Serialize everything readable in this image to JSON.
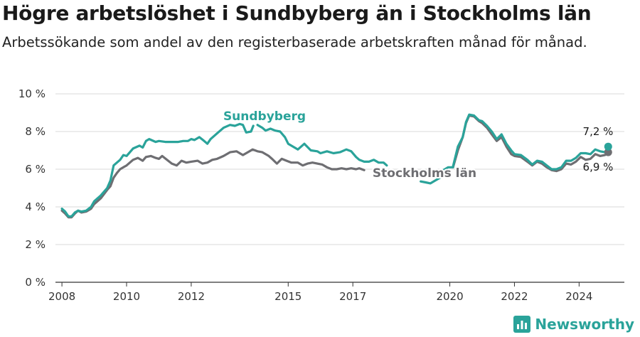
{
  "header": {
    "title": "Högre arbetslöshet i Sundbyberg än i Stockholms län",
    "subtitle": "Arbetssökande som andel av den registerbaserade arbetskraften månad för månad."
  },
  "brand": {
    "name": "Newsworthy"
  },
  "colors": {
    "sundbyberg": "#2aa39a",
    "stockholm": "#6e6e72",
    "grid": "#d9d9d9",
    "axis": "#333333"
  },
  "chart_data": {
    "type": "line",
    "title": "Högre arbetslöshet i Sundbyberg än i Stockholms län",
    "subtitle": "Arbetssökande som andel av den registerbaserade arbetskraften månad för månad.",
    "xlabel": "",
    "ylabel": "",
    "xlim": [
      2007.8,
      2025.4
    ],
    "ylim": [
      0,
      10
    ],
    "grid": true,
    "x_ticks": [
      2008,
      2010,
      2012,
      2015,
      2017,
      2020,
      2022,
      2024
    ],
    "x_tick_labels": [
      "2008",
      "2010",
      "2012",
      "2015",
      "2017",
      "2020",
      "2022",
      "2024"
    ],
    "y_ticks": [
      0,
      2,
      4,
      6,
      8,
      10
    ],
    "y_tick_labels": [
      "0 %",
      "2 %",
      "4 %",
      "6 %",
      "8 %",
      "10 %"
    ],
    "series": [
      {
        "name": "Sundbyberg",
        "label": "Sundbyberg",
        "end_label": "7,2 %",
        "end_value": 7.2,
        "segments": [
          [
            [
              2008.0,
              3.9
            ],
            [
              2008.1,
              3.75
            ],
            [
              2008.2,
              3.5
            ],
            [
              2008.3,
              3.5
            ],
            [
              2008.4,
              3.7
            ],
            [
              2008.5,
              3.8
            ],
            [
              2008.6,
              3.75
            ],
            [
              2008.75,
              3.8
            ],
            [
              2008.9,
              4.0
            ],
            [
              2009.0,
              4.3
            ],
            [
              2009.2,
              4.6
            ],
            [
              2009.4,
              5.0
            ],
            [
              2009.5,
              5.4
            ],
            [
              2009.6,
              6.2
            ],
            [
              2009.7,
              6.35
            ],
            [
              2009.8,
              6.5
            ],
            [
              2009.9,
              6.75
            ],
            [
              2010.0,
              6.7
            ],
            [
              2010.2,
              7.1
            ],
            [
              2010.4,
              7.25
            ],
            [
              2010.5,
              7.15
            ],
            [
              2010.6,
              7.5
            ],
            [
              2010.7,
              7.6
            ],
            [
              2010.9,
              7.45
            ],
            [
              2011.0,
              7.5
            ],
            [
              2011.2,
              7.45
            ],
            [
              2011.4,
              7.45
            ],
            [
              2011.6,
              7.45
            ],
            [
              2011.75,
              7.5
            ],
            [
              2011.9,
              7.5
            ],
            [
              2012.0,
              7.6
            ],
            [
              2012.1,
              7.55
            ],
            [
              2012.25,
              7.7
            ],
            [
              2012.4,
              7.5
            ],
            [
              2012.5,
              7.35
            ],
            [
              2012.6,
              7.6
            ],
            [
              2012.8,
              7.9
            ],
            [
              2013.0,
              8.2
            ],
            [
              2013.2,
              8.35
            ],
            [
              2013.35,
              8.3
            ],
            [
              2013.5,
              8.4
            ],
            [
              2013.6,
              8.35
            ],
            [
              2013.7,
              7.95
            ],
            [
              2013.85,
              8.0
            ],
            [
              2013.92,
              8.3
            ]
          ],
          [
            [
              2014.05,
              8.35
            ],
            [
              2014.2,
              8.2
            ],
            [
              2014.3,
              8.05
            ],
            [
              2014.45,
              8.15
            ],
            [
              2014.6,
              8.05
            ],
            [
              2014.75,
              8.0
            ],
            [
              2014.9,
              7.7
            ],
            [
              2015.0,
              7.35
            ],
            [
              2015.15,
              7.2
            ],
            [
              2015.3,
              7.05
            ],
            [
              2015.5,
              7.35
            ],
            [
              2015.7,
              7.0
            ],
            [
              2015.9,
              6.95
            ],
            [
              2016.0,
              6.85
            ],
            [
              2016.2,
              6.95
            ],
            [
              2016.4,
              6.85
            ],
            [
              2016.6,
              6.9
            ],
            [
              2016.8,
              7.05
            ],
            [
              2016.95,
              6.95
            ],
            [
              2017.1,
              6.65
            ],
            [
              2017.2,
              6.5
            ],
            [
              2017.35,
              6.4
            ],
            [
              2017.5,
              6.4
            ],
            [
              2017.65,
              6.5
            ],
            [
              2017.8,
              6.35
            ],
            [
              2017.95,
              6.35
            ],
            [
              2018.05,
              6.2
            ]
          ],
          [
            [
              2019.1,
              5.35
            ],
            [
              2019.25,
              5.3
            ],
            [
              2019.4,
              5.25
            ],
            [
              2019.55,
              5.4
            ],
            [
              2019.7,
              5.55
            ],
            [
              2019.8,
              5.95
            ],
            [
              2019.95,
              6.1
            ],
            [
              2020.1,
              6.1
            ]
          ],
          [
            [
              2020.1,
              6.15
            ],
            [
              2020.25,
              7.2
            ],
            [
              2020.4,
              7.7
            ],
            [
              2020.5,
              8.5
            ],
            [
              2020.6,
              8.9
            ],
            [
              2020.75,
              8.85
            ],
            [
              2020.9,
              8.6
            ],
            [
              2021.0,
              8.55
            ],
            [
              2021.15,
              8.3
            ],
            [
              2021.3,
              8.0
            ],
            [
              2021.45,
              7.6
            ],
            [
              2021.6,
              7.85
            ],
            [
              2021.75,
              7.35
            ],
            [
              2021.9,
              7.0
            ],
            [
              2022.0,
              6.8
            ],
            [
              2022.2,
              6.75
            ],
            [
              2022.4,
              6.5
            ],
            [
              2022.55,
              6.25
            ],
            [
              2022.7,
              6.45
            ],
            [
              2022.85,
              6.4
            ],
            [
              2023.0,
              6.2
            ],
            [
              2023.15,
              6.0
            ],
            [
              2023.3,
              6.0
            ],
            [
              2023.45,
              6.1
            ],
            [
              2023.6,
              6.45
            ],
            [
              2023.75,
              6.45
            ],
            [
              2023.9,
              6.6
            ],
            [
              2024.05,
              6.85
            ],
            [
              2024.2,
              6.85
            ],
            [
              2024.35,
              6.8
            ],
            [
              2024.5,
              7.05
            ],
            [
              2024.65,
              6.95
            ],
            [
              2024.8,
              6.9
            ],
            [
              2024.9,
              7.2
            ]
          ]
        ]
      },
      {
        "name": "Stockholms län",
        "label": "Stockholms län",
        "end_label": "6,9 %",
        "end_value": 6.9,
        "segments": [
          [
            [
              2008.0,
              3.8
            ],
            [
              2008.1,
              3.65
            ],
            [
              2008.2,
              3.45
            ],
            [
              2008.3,
              3.45
            ],
            [
              2008.4,
              3.65
            ],
            [
              2008.5,
              3.8
            ],
            [
              2008.6,
              3.7
            ],
            [
              2008.75,
              3.75
            ],
            [
              2008.9,
              3.9
            ],
            [
              2009.0,
              4.15
            ],
            [
              2009.2,
              4.45
            ],
            [
              2009.4,
              4.9
            ],
            [
              2009.5,
              5.1
            ],
            [
              2009.6,
              5.55
            ],
            [
              2009.7,
              5.8
            ],
            [
              2009.8,
              6.0
            ],
            [
              2009.9,
              6.1
            ],
            [
              2010.0,
              6.2
            ],
            [
              2010.2,
              6.5
            ],
            [
              2010.35,
              6.6
            ],
            [
              2010.5,
              6.45
            ],
            [
              2010.6,
              6.65
            ],
            [
              2010.75,
              6.7
            ],
            [
              2010.9,
              6.6
            ],
            [
              2011.0,
              6.55
            ],
            [
              2011.1,
              6.7
            ],
            [
              2011.25,
              6.5
            ],
            [
              2011.4,
              6.3
            ],
            [
              2011.55,
              6.2
            ],
            [
              2011.7,
              6.45
            ],
            [
              2011.85,
              6.35
            ],
            [
              2012.0,
              6.4
            ],
            [
              2012.2,
              6.45
            ],
            [
              2012.35,
              6.3
            ],
            [
              2012.5,
              6.35
            ],
            [
              2012.65,
              6.5
            ],
            [
              2012.8,
              6.55
            ],
            [
              2013.0,
              6.7
            ],
            [
              2013.2,
              6.9
            ],
            [
              2013.4,
              6.95
            ],
            [
              2013.6,
              6.75
            ],
            [
              2013.75,
              6.9
            ],
            [
              2013.9,
              7.05
            ],
            [
              2014.05,
              6.95
            ],
            [
              2014.2,
              6.9
            ],
            [
              2014.4,
              6.7
            ],
            [
              2014.5,
              6.55
            ],
            [
              2014.65,
              6.3
            ],
            [
              2014.8,
              6.55
            ],
            [
              2014.95,
              6.45
            ],
            [
              2015.1,
              6.35
            ],
            [
              2015.3,
              6.35
            ],
            [
              2015.45,
              6.2
            ],
            [
              2015.6,
              6.3
            ],
            [
              2015.75,
              6.35
            ],
            [
              2015.9,
              6.3
            ],
            [
              2016.05,
              6.25
            ],
            [
              2016.2,
              6.1
            ],
            [
              2016.35,
              6.0
            ],
            [
              2016.5,
              6.0
            ],
            [
              2016.65,
              6.05
            ],
            [
              2016.8,
              6.0
            ],
            [
              2016.95,
              6.05
            ],
            [
              2017.1,
              6.0
            ],
            [
              2017.2,
              6.05
            ],
            [
              2017.35,
              5.95
            ]
          ],
          [
            [
              2020.1,
              6.1
            ],
            [
              2020.25,
              7.0
            ],
            [
              2020.4,
              7.7
            ],
            [
              2020.5,
              8.45
            ],
            [
              2020.6,
              8.85
            ],
            [
              2020.75,
              8.8
            ],
            [
              2020.9,
              8.55
            ],
            [
              2021.0,
              8.45
            ],
            [
              2021.15,
              8.2
            ],
            [
              2021.3,
              7.85
            ],
            [
              2021.45,
              7.5
            ],
            [
              2021.6,
              7.7
            ],
            [
              2021.75,
              7.2
            ],
            [
              2021.9,
              6.8
            ],
            [
              2022.0,
              6.7
            ],
            [
              2022.2,
              6.65
            ],
            [
              2022.4,
              6.4
            ],
            [
              2022.55,
              6.2
            ],
            [
              2022.7,
              6.4
            ],
            [
              2022.85,
              6.3
            ],
            [
              2023.0,
              6.1
            ],
            [
              2023.15,
              5.95
            ],
            [
              2023.3,
              5.9
            ],
            [
              2023.45,
              6.0
            ],
            [
              2023.6,
              6.3
            ],
            [
              2023.75,
              6.25
            ],
            [
              2023.9,
              6.4
            ],
            [
              2024.05,
              6.65
            ],
            [
              2024.2,
              6.5
            ],
            [
              2024.35,
              6.55
            ],
            [
              2024.5,
              6.8
            ],
            [
              2024.65,
              6.7
            ],
            [
              2024.8,
              6.75
            ],
            [
              2024.9,
              6.9
            ]
          ]
        ]
      }
    ]
  }
}
